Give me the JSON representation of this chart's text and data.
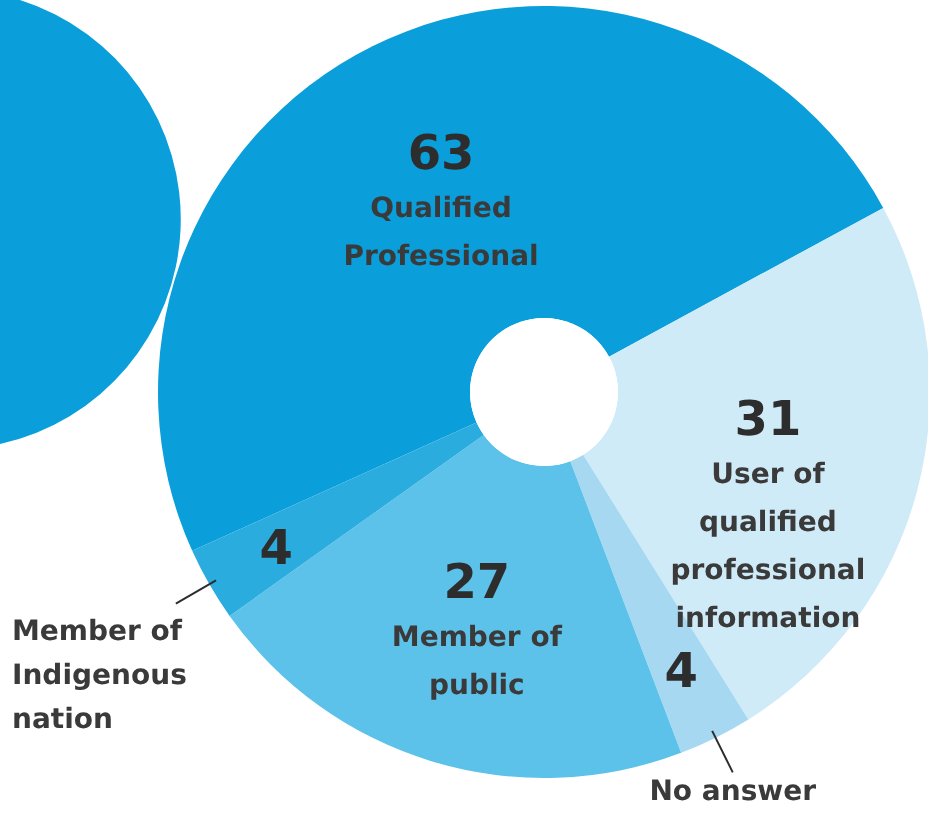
{
  "chart_data": {
    "type": "donut",
    "categories": [
      "Qualified Professional",
      "User of qualified professional information",
      "No answer",
      "Member of public",
      "Member of Indigenous nation"
    ],
    "values": [
      63,
      31,
      4,
      27,
      4
    ],
    "colors": [
      "#0a9edb",
      "#d0ebf8",
      "#a6d9f1",
      "#5cc2ea",
      "#2aacde"
    ],
    "data_labels": true
  }
}
